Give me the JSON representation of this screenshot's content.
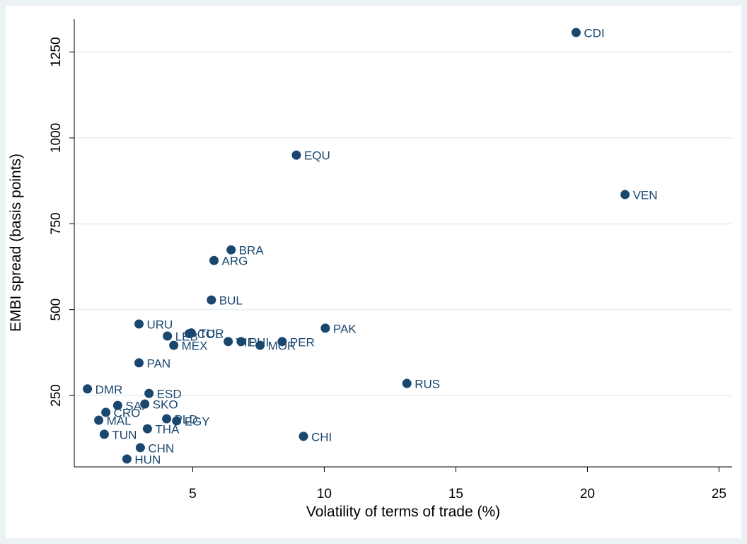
{
  "chart_data": {
    "type": "scatter",
    "x_label": "Volatility of terms of trade (%)",
    "y_label": "EMBI spread (basis points)",
    "labels": [
      "CDI",
      "EQU",
      "VEN",
      "BRA",
      "ARG",
      "BUL",
      "URU",
      "PAK",
      "LEB",
      "COL",
      "TUR",
      "MEX",
      "VIE",
      "PHI",
      "PER",
      "MOR",
      "PAN",
      "DMR",
      "RUS",
      "ESD",
      "SAF",
      "SKO",
      "CRO",
      "MAL",
      "PLD",
      "EGY",
      "THA",
      "TUN",
      "CHI",
      "CHN",
      "HUN"
    ],
    "x": [
      19.57,
      8.94,
      21.43,
      6.46,
      5.81,
      5.71,
      2.96,
      10.04,
      4.04,
      4.87,
      4.95,
      4.28,
      6.35,
      6.84,
      8.4,
      7.56,
      2.96,
      1.0,
      13.14,
      3.34,
      2.15,
      3.18,
      1.7,
      1.43,
      4.01,
      4.39,
      3.28,
      1.64,
      9.21,
      3.01,
      2.5
    ],
    "values": [
      1307,
      950,
      835,
      674,
      643,
      528,
      458,
      446,
      423,
      430,
      432,
      396,
      407,
      407,
      407,
      396,
      345,
      269,
      285,
      256,
      221,
      225,
      201,
      178,
      182,
      176,
      153,
      137,
      131,
      98,
      65
    ],
    "color": "#1a476f",
    "xlim": [
      0.5,
      25.5
    ],
    "ylim": [
      42,
      1346
    ],
    "xticks": [
      5,
      10,
      15,
      20,
      25
    ],
    "yticks": [
      250,
      500,
      750,
      1000,
      1250
    ],
    "grid": true
  }
}
